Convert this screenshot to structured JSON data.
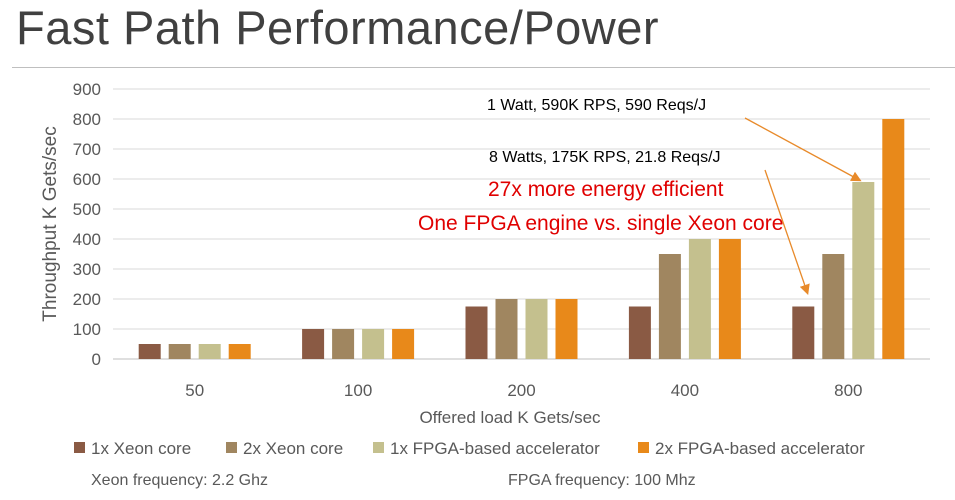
{
  "slide": {
    "title": "Fast Path Performance/Power"
  },
  "chart_data": {
    "type": "bar",
    "categories": [
      "50",
      "100",
      "200",
      "400",
      "800"
    ],
    "series": [
      {
        "name": "1x Xeon core",
        "values": [
          50,
          100,
          175,
          175,
          175
        ]
      },
      {
        "name": "2x Xeon core",
        "values": [
          50,
          100,
          200,
          350,
          350
        ]
      },
      {
        "name": "1x FPGA-based accelerator",
        "values": [
          50,
          100,
          200,
          400,
          590
        ]
      },
      {
        "name": "2x FPGA-based accelerator",
        "values": [
          50,
          100,
          200,
          400,
          800
        ]
      }
    ],
    "colors": [
      "#8a5a44",
      "#a08660",
      "#c4c08e",
      "#e8891a"
    ],
    "xlabel": "Offered load K Gets/sec",
    "ylabel": "Throughput K Gets/sec",
    "ylim": [
      0,
      900
    ],
    "yticks": [
      0,
      100,
      200,
      300,
      400,
      500,
      600,
      700,
      800,
      900
    ],
    "grid": true,
    "legend_position": "bottom",
    "annotations": [
      {
        "text": "1 Watt, 590K RPS,  590 Reqs/J",
        "color": "#000000",
        "arrow_to": {
          "series": 2,
          "category": 4
        }
      },
      {
        "text": "8 Watts, 175K RPS, 21.8 Reqs/J",
        "color": "#000000",
        "arrow_to": {
          "series": 0,
          "category": 4
        }
      },
      {
        "text": "27x more energy efficient",
        "color": "#e00000"
      },
      {
        "text": "One FPGA engine vs. single Xeon core",
        "color": "#e00000"
      }
    ]
  },
  "notes": {
    "xeon_frequency": "Xeon frequency: 2.2 Ghz",
    "fpga_frequency": "FPGA frequency: 100 Mhz"
  }
}
